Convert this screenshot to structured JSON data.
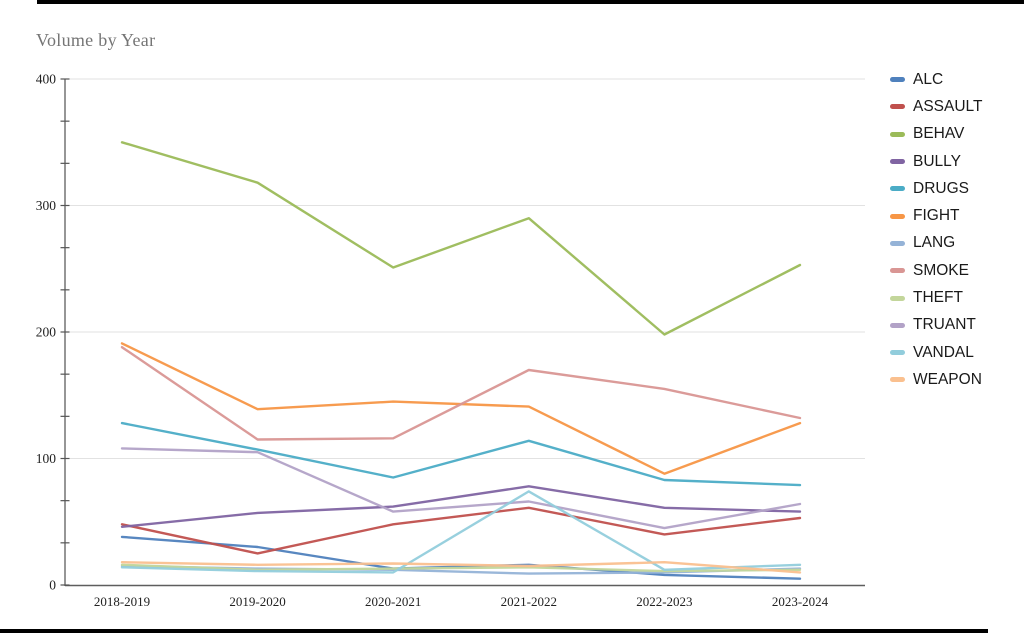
{
  "title": "Volume by Year",
  "chart_data": {
    "type": "line",
    "title": "Volume by Year",
    "xlabel": "",
    "ylabel": "",
    "x": [
      "2018-2019",
      "2019-2020",
      "2020-2021",
      "2021-2022",
      "2022-2023",
      "2023-2024"
    ],
    "ylim": [
      0,
      400
    ],
    "yticks": [
      0,
      100,
      200,
      300,
      400
    ],
    "grid": true,
    "legend_position": "right",
    "series": [
      {
        "name": "ALC",
        "color": "#4f81bd",
        "values": [
          38,
          30,
          13,
          16,
          8,
          5
        ]
      },
      {
        "name": "ASSAULT",
        "color": "#c0504d",
        "values": [
          48,
          25,
          48,
          61,
          40,
          53
        ]
      },
      {
        "name": "BEHAV",
        "color": "#9bbb59",
        "values": [
          350,
          318,
          251,
          290,
          198,
          253
        ]
      },
      {
        "name": "BULLY",
        "color": "#8064a2",
        "values": [
          46,
          57,
          62,
          78,
          61,
          58
        ]
      },
      {
        "name": "DRUGS",
        "color": "#4bacc6",
        "values": [
          128,
          107,
          85,
          114,
          83,
          79
        ]
      },
      {
        "name": "FIGHT",
        "color": "#f79646",
        "values": [
          191,
          139,
          145,
          141,
          88,
          128
        ]
      },
      {
        "name": "LANG",
        "color": "#95b3d7",
        "values": [
          15,
          13,
          12,
          9,
          10,
          13
        ]
      },
      {
        "name": "SMOKE",
        "color": "#d99694",
        "values": [
          188,
          115,
          116,
          170,
          155,
          132
        ]
      },
      {
        "name": "THEFT",
        "color": "#c3d69b",
        "values": [
          16,
          12,
          13,
          14,
          11,
          12
        ]
      },
      {
        "name": "TRUANT",
        "color": "#b2a2c7",
        "values": [
          108,
          105,
          58,
          66,
          45,
          64
        ]
      },
      {
        "name": "VANDAL",
        "color": "#92cddc",
        "values": [
          14,
          11,
          10,
          74,
          12,
          16
        ]
      },
      {
        "name": "WEAPON",
        "color": "#fac08f",
        "values": [
          18,
          16,
          17,
          15,
          18,
          10
        ]
      }
    ],
    "axis_color": "#5e5e5e",
    "gridline_color": "#e2e2e2",
    "label_color": "#222222"
  }
}
